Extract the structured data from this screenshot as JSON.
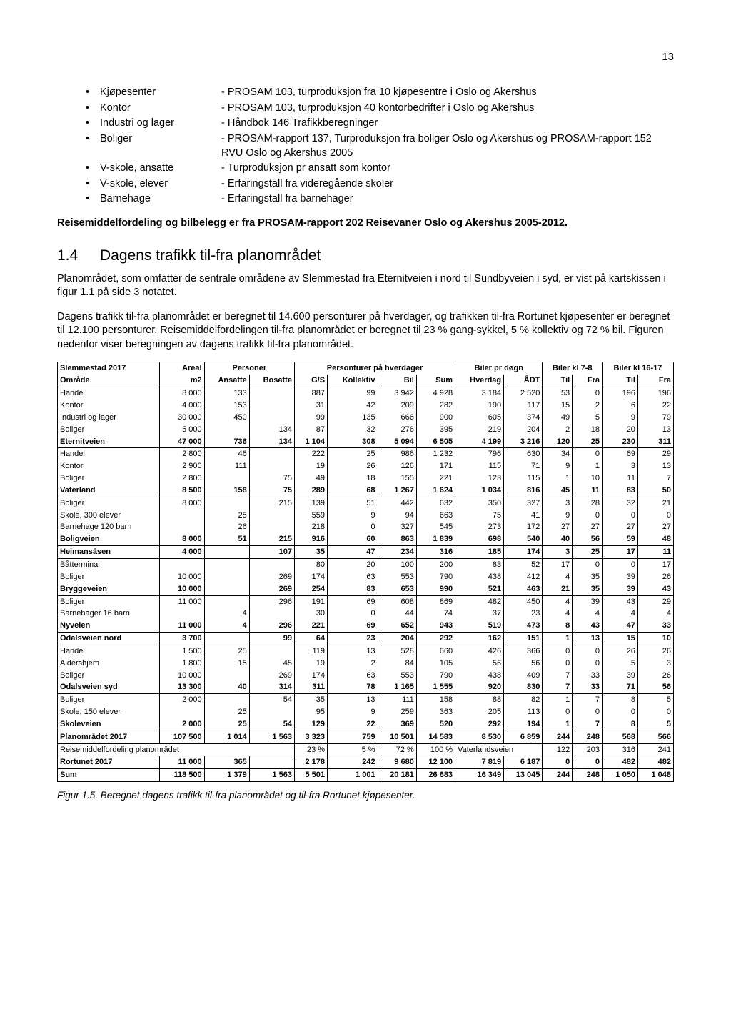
{
  "page_number": "13",
  "bullets": [
    {
      "term": "Kjøpesenter",
      "desc": "- PROSAM 103, turproduksjon fra 10 kjøpesentre i Oslo og Akershus"
    },
    {
      "term": "Kontor",
      "desc": "- PROSAM 103, turproduksjon 40 kontorbedrifter i Oslo og Akershus"
    },
    {
      "term": "Industri og lager",
      "desc": "- Håndbok 146 Trafikkberegninger"
    },
    {
      "term": "Boliger",
      "desc": "- PROSAM-rapport 137, Turproduksjon fra boliger Oslo og Akershus og PROSAM-rapport 152 RVU Oslo og Akershus 2005"
    },
    {
      "term": "V-skole, ansatte",
      "desc": "- Turproduksjon pr ansatt som kontor"
    },
    {
      "term": "V-skole, elever",
      "desc": "- Erfaringstall fra videregående skoler"
    },
    {
      "term": "Barnehage",
      "desc": "- Erfaringstall fra barnehager"
    }
  ],
  "para_reise": "Reisemiddelfordeling og bilbelegg er fra PROSAM-rapport 202 Reisevaner Oslo og Akershus 2005-2012.",
  "sect_num": "1.4",
  "sect_title": "Dagens trafikk til-fra planområdet",
  "para1": "Planområdet, som omfatter de sentrale områdene av Slemmestad fra Eternitveien i nord til Sundbyveien i syd, er vist på kartskissen i figur 1.1 på side 3 notatet.",
  "para2": "Dagens trafikk til-fra planområdet er beregnet til 14.600 personturer på hverdager, og trafikken til-fra Rortunet kjøpesenter er beregnet til 12.100 personturer. Reisemiddelfordelingen til-fra planområdet er beregnet til 23 % gang-sykkel, 5 % kollektiv og 72 % bil. Figuren nedenfor viser beregningen av dagens trafikk til-fra planområdet.",
  "table": {
    "h1": {
      "c0": "Slemmestad 2017",
      "c1": "Areal",
      "c2": "Personer",
      "c3": "Personturer på hverdager",
      "c4": "Biler pr døgn",
      "c5": "Biler kl 7-8",
      "c6": "Biler kl 16-17"
    },
    "h2": {
      "c0": "Område",
      "c1": "m2",
      "c2": "Ansatte",
      "c3": "Bosatte",
      "c4": "G/S",
      "c5": "Kollektiv",
      "c6": "Bil",
      "c7": "Sum",
      "c8": "Hverdag",
      "c9": "ÅDT",
      "c10": "Til",
      "c11": "Fra",
      "c12": "Til",
      "c13": "Fra"
    },
    "rows": [
      {
        "top": 1,
        "bold": 0,
        "c": [
          "Handel",
          "8 000",
          "133",
          "",
          "887",
          "99",
          "3 942",
          "4 928",
          "3 184",
          "2 520",
          "53",
          "0",
          "196",
          "196"
        ]
      },
      {
        "top": 0,
        "bold": 0,
        "c": [
          "Kontor",
          "4 000",
          "153",
          "",
          "31",
          "42",
          "209",
          "282",
          "190",
          "117",
          "15",
          "2",
          "6",
          "22"
        ]
      },
      {
        "top": 0,
        "bold": 0,
        "c": [
          "Industri og lager",
          "30 000",
          "450",
          "",
          "99",
          "135",
          "666",
          "900",
          "605",
          "374",
          "49",
          "5",
          "9",
          "79"
        ]
      },
      {
        "top": 0,
        "bold": 0,
        "c": [
          "Boliger",
          "5 000",
          "",
          "134",
          "87",
          "32",
          "276",
          "395",
          "219",
          "204",
          "2",
          "18",
          "20",
          "13"
        ]
      },
      {
        "top": 0,
        "bold": 1,
        "c": [
          "Eternitveien",
          "47 000",
          "736",
          "134",
          "1 104",
          "308",
          "5 094",
          "6 505",
          "4 199",
          "3 216",
          "120",
          "25",
          "230",
          "311"
        ]
      },
      {
        "top": 1,
        "bold": 0,
        "c": [
          "Handel",
          "2 800",
          "46",
          "",
          "222",
          "25",
          "986",
          "1 232",
          "796",
          "630",
          "34",
          "0",
          "69",
          "29"
        ]
      },
      {
        "top": 0,
        "bold": 0,
        "c": [
          "Kontor",
          "2 900",
          "111",
          "",
          "19",
          "26",
          "126",
          "171",
          "115",
          "71",
          "9",
          "1",
          "3",
          "13"
        ]
      },
      {
        "top": 0,
        "bold": 0,
        "c": [
          "Boliger",
          "2 800",
          "",
          "75",
          "49",
          "18",
          "155",
          "221",
          "123",
          "115",
          "1",
          "10",
          "11",
          "7"
        ]
      },
      {
        "top": 0,
        "bold": 1,
        "c": [
          "Vaterland",
          "8 500",
          "158",
          "75",
          "289",
          "68",
          "1 267",
          "1 624",
          "1 034",
          "816",
          "45",
          "11",
          "83",
          "50"
        ]
      },
      {
        "top": 1,
        "bold": 0,
        "c": [
          "Boliger",
          "8 000",
          "",
          "215",
          "139",
          "51",
          "442",
          "632",
          "350",
          "327",
          "3",
          "28",
          "32",
          "21"
        ]
      },
      {
        "top": 0,
        "bold": 0,
        "c": [
          "Skole, 300 elever",
          "",
          "25",
          "",
          "559",
          "9",
          "94",
          "663",
          "75",
          "41",
          "9",
          "0",
          "0",
          "0"
        ]
      },
      {
        "top": 0,
        "bold": 0,
        "c": [
          "Barnehage 120 barn",
          "",
          "26",
          "",
          "218",
          "0",
          "327",
          "545",
          "273",
          "172",
          "27",
          "27",
          "27",
          "27"
        ]
      },
      {
        "top": 0,
        "bold": 1,
        "c": [
          "Boligveien",
          "8 000",
          "51",
          "215",
          "916",
          "60",
          "863",
          "1 839",
          "698",
          "540",
          "40",
          "56",
          "59",
          "48"
        ]
      },
      {
        "top": 1,
        "bold": 1,
        "c": [
          "Heimansåsen",
          "4 000",
          "",
          "107",
          "35",
          "47",
          "234",
          "316",
          "185",
          "174",
          "3",
          "25",
          "17",
          "11"
        ]
      },
      {
        "top": 1,
        "bold": 0,
        "c": [
          "Båtterminal",
          "",
          "",
          "",
          "80",
          "20",
          "100",
          "200",
          "83",
          "52",
          "17",
          "0",
          "0",
          "17"
        ]
      },
      {
        "top": 0,
        "bold": 0,
        "c": [
          "Boliger",
          "10 000",
          "",
          "269",
          "174",
          "63",
          "553",
          "790",
          "438",
          "412",
          "4",
          "35",
          "39",
          "26"
        ]
      },
      {
        "top": 0,
        "bold": 1,
        "c": [
          "Bryggeveien",
          "10 000",
          "",
          "269",
          "254",
          "83",
          "653",
          "990",
          "521",
          "463",
          "21",
          "35",
          "39",
          "43"
        ]
      },
      {
        "top": 1,
        "bold": 0,
        "c": [
          "Boliger",
          "11 000",
          "",
          "296",
          "191",
          "69",
          "608",
          "869",
          "482",
          "450",
          "4",
          "39",
          "43",
          "29"
        ]
      },
      {
        "top": 0,
        "bold": 0,
        "c": [
          "Barnehager 16 barn",
          "",
          "4",
          "",
          "30",
          "0",
          "44",
          "74",
          "37",
          "23",
          "4",
          "4",
          "4",
          "4"
        ]
      },
      {
        "top": 0,
        "bold": 1,
        "c": [
          "Nyveien",
          "11 000",
          "4",
          "296",
          "221",
          "69",
          "652",
          "943",
          "519",
          "473",
          "8",
          "43",
          "47",
          "33"
        ]
      },
      {
        "top": 1,
        "bold": 1,
        "c": [
          "Odalsveien nord",
          "3 700",
          "",
          "99",
          "64",
          "23",
          "204",
          "292",
          "162",
          "151",
          "1",
          "13",
          "15",
          "10"
        ]
      },
      {
        "top": 1,
        "bold": 0,
        "c": [
          "Handel",
          "1 500",
          "25",
          "",
          "119",
          "13",
          "528",
          "660",
          "426",
          "366",
          "0",
          "0",
          "26",
          "26"
        ]
      },
      {
        "top": 0,
        "bold": 0,
        "c": [
          "Aldershjem",
          "1 800",
          "15",
          "45",
          "19",
          "2",
          "84",
          "105",
          "56",
          "56",
          "0",
          "0",
          "5",
          "3"
        ]
      },
      {
        "top": 0,
        "bold": 0,
        "c": [
          "Boliger",
          "10 000",
          "",
          "269",
          "174",
          "63",
          "553",
          "790",
          "438",
          "409",
          "7",
          "33",
          "39",
          "26"
        ]
      },
      {
        "top": 0,
        "bold": 1,
        "c": [
          "Odalsveien syd",
          "13 300",
          "40",
          "314",
          "311",
          "78",
          "1 165",
          "1 555",
          "920",
          "830",
          "7",
          "33",
          "71",
          "56"
        ]
      },
      {
        "top": 1,
        "bold": 0,
        "c": [
          "Boliger",
          "2 000",
          "",
          "54",
          "35",
          "13",
          "111",
          "158",
          "88",
          "82",
          "1",
          "7",
          "8",
          "5"
        ]
      },
      {
        "top": 0,
        "bold": 0,
        "c": [
          "Skole, 150 elever",
          "",
          "25",
          "",
          "95",
          "9",
          "259",
          "363",
          "205",
          "113",
          "0",
          "0",
          "0",
          "0"
        ]
      },
      {
        "top": 0,
        "bold": 1,
        "c": [
          "Skoleveien",
          "2 000",
          "25",
          "54",
          "129",
          "22",
          "369",
          "520",
          "292",
          "194",
          "1",
          "7",
          "8",
          "5"
        ]
      },
      {
        "top": 1,
        "bold": 1,
        "c": [
          "Planområdet 2017",
          "107 500",
          "1 014",
          "1 563",
          "3 323",
          "759",
          "10 501",
          "14 583",
          "8 530",
          "6 859",
          "244",
          "248",
          "568",
          "566"
        ]
      },
      {
        "top": 1,
        "bold": 0,
        "special": "reise",
        "c": [
          "Reisemiddelfordeling planområdet",
          "",
          "",
          "",
          "23 %",
          "5 %",
          "72 %",
          "100 %",
          "Vaterlandsveien",
          "",
          "122",
          "203",
          "316",
          "241"
        ]
      },
      {
        "top": 1,
        "bold": 1,
        "c": [
          "Rortunet 2017",
          "11 000",
          "365",
          "",
          "2 178",
          "242",
          "9 680",
          "12 100",
          "7 819",
          "6 187",
          "0",
          "0",
          "482",
          "482"
        ]
      },
      {
        "top": 1,
        "bold": 1,
        "bot": 1,
        "c": [
          "Sum",
          "118 500",
          "1 379",
          "1 563",
          "5 501",
          "1 001",
          "20 181",
          "26 683",
          "16 349",
          "13 045",
          "244",
          "248",
          "1 050",
          "1 048"
        ]
      }
    ]
  },
  "caption": "Figur 1.5. Beregnet dagens trafikk til-fra planområdet og til-fra Rortunet kjøpesenter."
}
